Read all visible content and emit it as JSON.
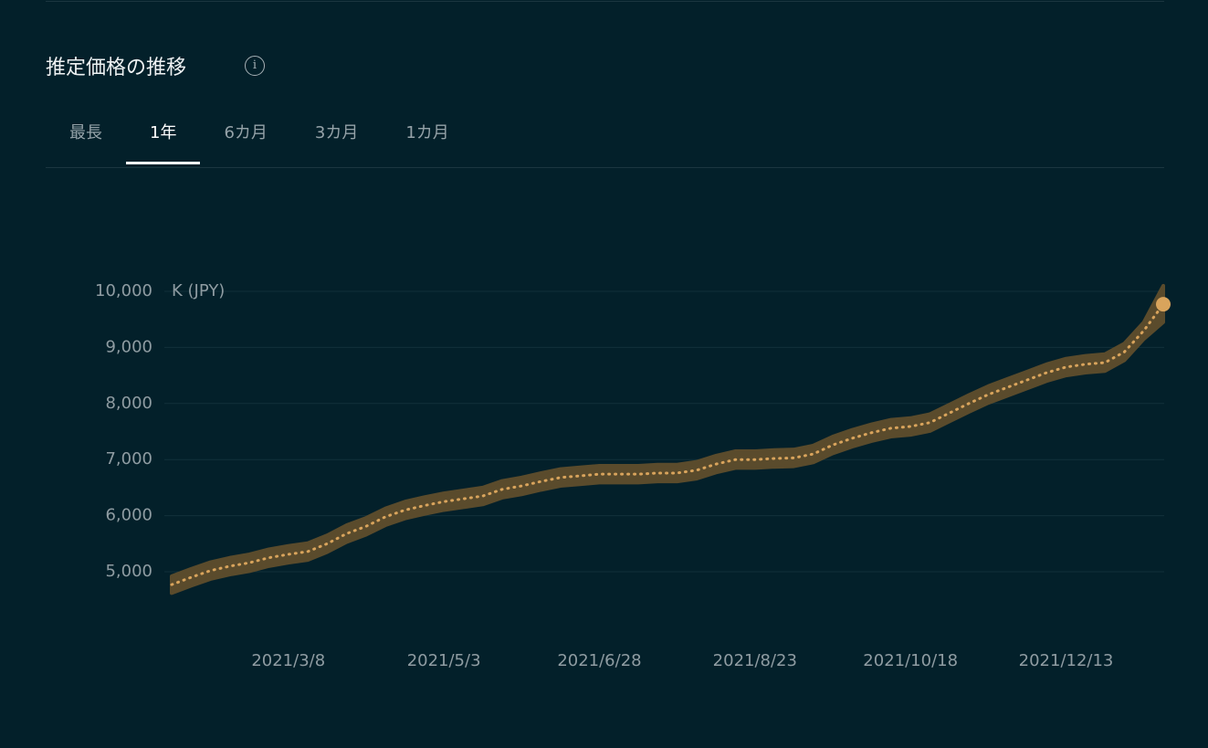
{
  "header": {
    "title": "推定価格の推移"
  },
  "tabs": {
    "items": [
      "最長",
      "1年",
      "6カ月",
      "3カ月",
      "1カ月"
    ],
    "active": 1
  },
  "chart_data": {
    "type": "band-line",
    "y_label": "K (JPY)",
    "x": [
      "2021/1/25",
      "2021/2/1",
      "2021/2/8",
      "2021/2/15",
      "2021/2/22",
      "2021/3/1",
      "2021/3/8",
      "2021/3/15",
      "2021/3/22",
      "2021/3/29",
      "2021/4/5",
      "2021/4/12",
      "2021/4/19",
      "2021/4/26",
      "2021/5/3",
      "2021/5/10",
      "2021/5/17",
      "2021/5/24",
      "2021/5/31",
      "2021/6/7",
      "2021/6/14",
      "2021/6/21",
      "2021/6/28",
      "2021/7/5",
      "2021/7/12",
      "2021/7/19",
      "2021/7/26",
      "2021/8/2",
      "2021/8/9",
      "2021/8/16",
      "2021/8/23",
      "2021/8/30",
      "2021/9/6",
      "2021/9/13",
      "2021/9/20",
      "2021/9/27",
      "2021/10/4",
      "2021/10/11",
      "2021/10/18",
      "2021/10/25",
      "2021/11/1",
      "2021/11/8",
      "2021/11/15",
      "2021/11/22",
      "2021/11/29",
      "2021/12/6",
      "2021/12/13",
      "2021/12/20",
      "2021/12/27",
      "2022/1/3",
      "2022/1/10",
      "2022/1/17"
    ],
    "values": [
      4770,
      4900,
      5020,
      5100,
      5160,
      5250,
      5310,
      5360,
      5500,
      5680,
      5810,
      5980,
      6100,
      6180,
      6250,
      6300,
      6350,
      6470,
      6530,
      6610,
      6680,
      6710,
      6740,
      6740,
      6740,
      6760,
      6760,
      6810,
      6920,
      7000,
      7000,
      7020,
      7030,
      7100,
      7260,
      7380,
      7480,
      7560,
      7590,
      7660,
      7830,
      8000,
      8160,
      8290,
      8420,
      8550,
      8650,
      8700,
      8730,
      8920,
      9300,
      9770
    ],
    "lower": [
      4620,
      4750,
      4870,
      4950,
      5010,
      5100,
      5160,
      5210,
      5350,
      5530,
      5660,
      5830,
      5950,
      6030,
      6100,
      6150,
      6200,
      6320,
      6380,
      6460,
      6530,
      6560,
      6590,
      6590,
      6590,
      6610,
      6610,
      6660,
      6770,
      6850,
      6850,
      6870,
      6880,
      6950,
      7110,
      7230,
      7330,
      7410,
      7440,
      7510,
      7680,
      7850,
      8010,
      8140,
      8270,
      8400,
      8500,
      8550,
      8580,
      8770,
      9150,
      9450
    ],
    "upper": [
      4920,
      5050,
      5170,
      5250,
      5310,
      5400,
      5460,
      5510,
      5650,
      5830,
      5960,
      6130,
      6250,
      6330,
      6400,
      6450,
      6500,
      6620,
      6680,
      6760,
      6830,
      6860,
      6890,
      6890,
      6890,
      6910,
      6910,
      6960,
      7070,
      7150,
      7150,
      7170,
      7180,
      7250,
      7410,
      7530,
      7630,
      7710,
      7740,
      7810,
      7980,
      8150,
      8310,
      8440,
      8570,
      8700,
      8800,
      8850,
      8880,
      9070,
      9450,
      10100
    ],
    "band_color": "#5a4b2c",
    "color": "#d9a45c",
    "xlim": [
      "2021/1/25",
      "2022/1/17"
    ],
    "xticks": [
      "2021/3/8",
      "2021/5/3",
      "2021/6/28",
      "2021/8/23",
      "2021/10/18",
      "2021/12/13"
    ],
    "ylim": [
      4500,
      10300
    ],
    "yticks": [
      {
        "value": 5000,
        "label": "5,000"
      },
      {
        "value": 6000,
        "label": "6,000"
      },
      {
        "value": 7000,
        "label": "7,000"
      },
      {
        "value": 8000,
        "label": "8,000"
      },
      {
        "value": 9000,
        "label": "9,000"
      },
      {
        "value": 10000,
        "label": "10,000"
      }
    ],
    "grid": true
  }
}
